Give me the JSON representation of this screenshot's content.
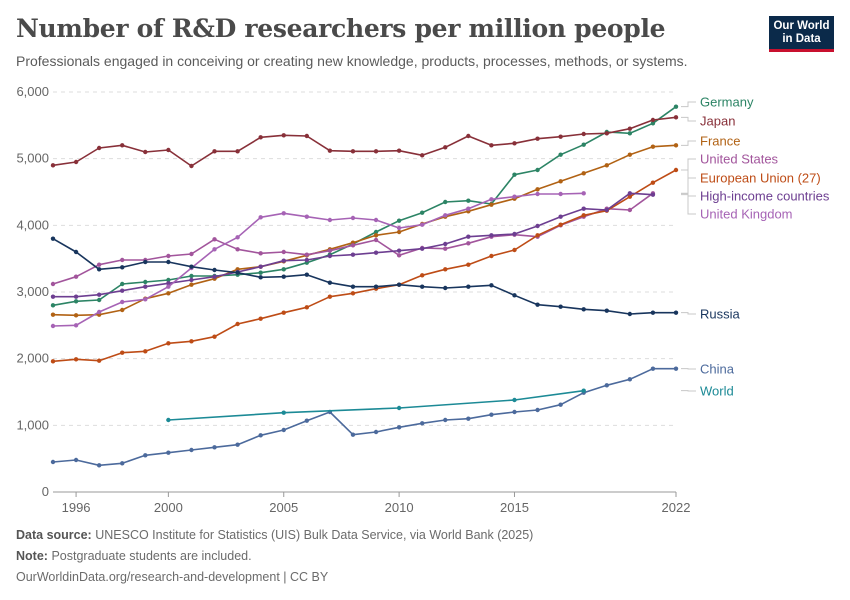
{
  "header": {
    "title": "Number of R&D researchers per million people",
    "subtitle": "Professionals engaged in conceiving or creating new knowledge, products, processes, methods, or systems.",
    "logo_line1": "Our World",
    "logo_line2": "in Data"
  },
  "footer": {
    "source_label": "Data source:",
    "source_text": "UNESCO Institute for Statistics (UIS) Bulk Data Service, via World Bank (2025)",
    "note_label": "Note:",
    "note_text": "Postgraduate students are included.",
    "credit": "OurWorldinData.org/research-and-development | CC BY"
  },
  "chart_data": {
    "type": "line",
    "title": "Number of R&D researchers per million people",
    "xlim": [
      1996,
      2022
    ],
    "ylim": [
      0,
      6000
    ],
    "x_ticks": [
      1996,
      2000,
      2005,
      2010,
      2015,
      2022
    ],
    "x_tick_labels": [
      "1996",
      "2000",
      "2005",
      "2010",
      "2015",
      "2022"
    ],
    "y_ticks": [
      0,
      1000,
      2000,
      3000,
      4000,
      5000,
      6000
    ],
    "y_tick_labels": [
      "0",
      "1,000",
      "2,000",
      "3,000",
      "4,000",
      "5,000",
      "6,000"
    ],
    "grid": "horizontal dashed",
    "legend": "right, labels at line ends",
    "series": [
      {
        "name": "Germany",
        "color": "#2c8465",
        "x": [
          1995,
          1996,
          1997,
          1998,
          1999,
          2000,
          2001,
          2002,
          2003,
          2004,
          2005,
          2006,
          2007,
          2008,
          2009,
          2010,
          2011,
          2012,
          2013,
          2014,
          2015,
          2016,
          2017,
          2018,
          2019,
          2020,
          2021,
          2022
        ],
        "y": [
          2800,
          2860,
          2880,
          3120,
          3150,
          3180,
          3240,
          3240,
          3260,
          3290,
          3340,
          3440,
          3560,
          3720,
          3900,
          4070,
          4190,
          4350,
          4370,
          4320,
          4760,
          4830,
          5060,
          5210,
          5400,
          5380,
          5530,
          5780
        ]
      },
      {
        "name": "Japan",
        "color": "#883039",
        "x": [
          1995,
          1996,
          1997,
          1998,
          1999,
          2000,
          2001,
          2002,
          2003,
          2004,
          2005,
          2006,
          2007,
          2008,
          2009,
          2010,
          2011,
          2012,
          2013,
          2014,
          2015,
          2016,
          2017,
          2018,
          2019,
          2020,
          2021,
          2022
        ],
        "y": [
          4900,
          4950,
          5160,
          5200,
          5100,
          5130,
          4890,
          5110,
          5110,
          5320,
          5350,
          5340,
          5120,
          5110,
          5110,
          5120,
          5050,
          5170,
          5340,
          5200,
          5230,
          5300,
          5330,
          5370,
          5380,
          5450,
          5580,
          5620
        ]
      },
      {
        "name": "France",
        "color": "#b16214",
        "x": [
          1995,
          1996,
          1997,
          1998,
          1999,
          2000,
          2001,
          2002,
          2003,
          2004,
          2005,
          2006,
          2007,
          2008,
          2009,
          2010,
          2011,
          2012,
          2013,
          2014,
          2015,
          2016,
          2017,
          2018,
          2019,
          2020,
          2021,
          2022
        ],
        "y": [
          2660,
          2650,
          2660,
          2730,
          2900,
          2980,
          3110,
          3200,
          3340,
          3380,
          3460,
          3550,
          3640,
          3740,
          3850,
          3900,
          4020,
          4130,
          4210,
          4310,
          4400,
          4540,
          4660,
          4780,
          4900,
          5060,
          5180,
          5200
        ]
      },
      {
        "name": "United States",
        "color": "#a2559c",
        "x": [
          1995,
          1996,
          1997,
          1998,
          1999,
          2000,
          2001,
          2002,
          2003,
          2004,
          2005,
          2006,
          2007,
          2008,
          2009,
          2010,
          2011,
          2012,
          2013,
          2014,
          2015,
          2016,
          2017,
          2018,
          2019,
          2020,
          2021
        ],
        "y": [
          3120,
          3230,
          3410,
          3480,
          3480,
          3540,
          3570,
          3790,
          3640,
          3580,
          3600,
          3560,
          3620,
          3700,
          3780,
          3550,
          3660,
          3650,
          3730,
          3830,
          3860,
          3830,
          4000,
          4130,
          4250,
          4230,
          4480
        ]
      },
      {
        "name": "European Union (27)",
        "color": "#be4c16",
        "x": [
          1995,
          1996,
          1997,
          1998,
          1999,
          2000,
          2001,
          2002,
          2003,
          2004,
          2005,
          2006,
          2007,
          2008,
          2009,
          2010,
          2011,
          2012,
          2013,
          2014,
          2015,
          2016,
          2017,
          2018,
          2019,
          2020,
          2021,
          2022
        ],
        "y": [
          1960,
          1990,
          1970,
          2090,
          2110,
          2230,
          2260,
          2330,
          2520,
          2600,
          2690,
          2770,
          2930,
          2980,
          3050,
          3110,
          3250,
          3340,
          3410,
          3540,
          3630,
          3850,
          4010,
          4150,
          4220,
          4430,
          4640,
          4830
        ]
      },
      {
        "name": "High-income countries",
        "color": "#6d3e91",
        "x": [
          1995,
          1996,
          1997,
          1998,
          1999,
          2000,
          2001,
          2002,
          2003,
          2004,
          2005,
          2006,
          2007,
          2008,
          2009,
          2010,
          2011,
          2012,
          2013,
          2014,
          2015,
          2016,
          2017,
          2018,
          2019,
          2020,
          2021
        ],
        "y": [
          2930,
          2930,
          2960,
          3020,
          3080,
          3130,
          3180,
          3230,
          3300,
          3380,
          3470,
          3480,
          3540,
          3560,
          3590,
          3620,
          3650,
          3720,
          3830,
          3850,
          3870,
          3990,
          4130,
          4250,
          4230,
          4480,
          4460
        ]
      },
      {
        "name": "United Kingdom",
        "color": "#a663b5",
        "x": [
          1995,
          1996,
          1997,
          1998,
          1999,
          2000,
          2001,
          2002,
          2003,
          2004,
          2005,
          2006,
          2007,
          2008,
          2009,
          2010,
          2011,
          2012,
          2013,
          2014,
          2015,
          2016,
          2017,
          2018
        ],
        "y": [
          2490,
          2500,
          2700,
          2850,
          2890,
          3080,
          3360,
          3640,
          3820,
          4120,
          4180,
          4130,
          4080,
          4110,
          4080,
          3960,
          4010,
          4150,
          4250,
          4390,
          4430,
          4470,
          4470,
          4480
        ]
      },
      {
        "name": "Russia",
        "color": "#18355d",
        "x": [
          1995,
          1996,
          1997,
          1998,
          1999,
          2000,
          2001,
          2002,
          2003,
          2004,
          2005,
          2006,
          2007,
          2008,
          2009,
          2010,
          2011,
          2012,
          2013,
          2014,
          2015,
          2016,
          2017,
          2018,
          2019,
          2020,
          2021,
          2022
        ],
        "y": [
          3800,
          3600,
          3340,
          3370,
          3450,
          3450,
          3380,
          3330,
          3290,
          3220,
          3230,
          3260,
          3140,
          3080,
          3080,
          3110,
          3080,
          3060,
          3080,
          3100,
          2950,
          2810,
          2780,
          2740,
          2720,
          2670,
          2690,
          2690
        ]
      },
      {
        "name": "China",
        "color": "#4c6a9c",
        "x": [
          1995,
          1996,
          1997,
          1998,
          1999,
          2000,
          2001,
          2002,
          2003,
          2004,
          2005,
          2006,
          2007,
          2008,
          2009,
          2010,
          2011,
          2012,
          2013,
          2014,
          2015,
          2016,
          2017,
          2018,
          2019,
          2020,
          2021,
          2022
        ],
        "y": [
          450,
          480,
          400,
          430,
          550,
          590,
          630,
          670,
          710,
          850,
          930,
          1070,
          1200,
          860,
          900,
          970,
          1030,
          1080,
          1100,
          1160,
          1200,
          1230,
          1310,
          1490,
          1600,
          1690,
          1850,
          1850
        ]
      },
      {
        "name": "World",
        "color": "#1c8a96",
        "x": [
          2000,
          2005,
          2010,
          2015,
          2018
        ],
        "y": [
          1080,
          1190,
          1260,
          1380,
          1520
        ]
      }
    ]
  }
}
